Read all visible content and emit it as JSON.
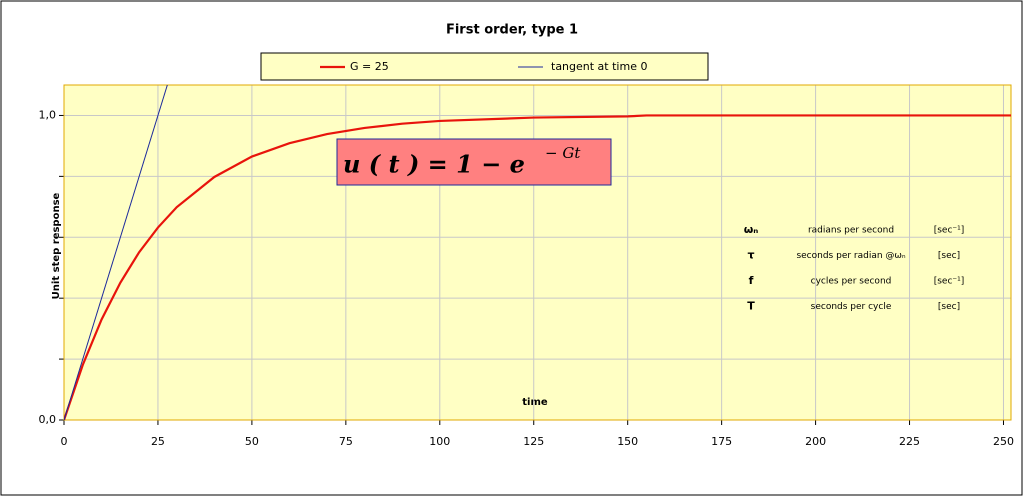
{
  "chart_data": {
    "type": "line",
    "title": "First order, type 1",
    "xlabel": "time",
    "ylabel": "Unit step response",
    "xlim": [
      0,
      252
    ],
    "ylim": [
      0,
      1.1
    ],
    "xticks": [
      0,
      25,
      50,
      75,
      100,
      125,
      150,
      175,
      200,
      225,
      250
    ],
    "yticks": [
      {
        "value": 0,
        "label": "0,0"
      },
      {
        "value": 0.2,
        "label": null
      },
      {
        "value": 0.4,
        "label": null
      },
      {
        "value": 0.6,
        "label": null
      },
      {
        "value": 0.8,
        "label": null
      },
      {
        "value": 1.0,
        "label": "1,0"
      }
    ],
    "grid": true,
    "legend": "top",
    "series": [
      {
        "name": "G =  25",
        "color": "#e8140c",
        "x": [
          0,
          5,
          10,
          15,
          20,
          25,
          30,
          40,
          50,
          60,
          70,
          80,
          90,
          100,
          125,
          150,
          155,
          175,
          200,
          225,
          252
        ],
        "values": [
          0,
          0.181,
          0.33,
          0.451,
          0.551,
          0.632,
          0.699,
          0.798,
          0.865,
          0.909,
          0.939,
          0.959,
          0.973,
          0.982,
          0.993,
          0.997,
          1.0,
          1.0,
          1.0,
          1.0,
          1.0
        ]
      },
      {
        "name": "tangent at time 0",
        "color": "#1c2a9c",
        "x": [
          0,
          27.5
        ],
        "values": [
          0,
          1.1
        ]
      }
    ],
    "annotations": {
      "formula": {
        "base": "u ( t )  =  1  −  e",
        "exponent": "− Gt"
      },
      "table": [
        [
          "ωₙ",
          "radians per second",
          "[sec⁻¹]"
        ],
        [
          "τ",
          "seconds per radian @ωₙ",
          "[sec]"
        ],
        [
          "f",
          "cycles per second",
          "[sec⁻¹]"
        ],
        [
          "T",
          "seconds per cycle",
          "[sec]"
        ]
      ]
    }
  }
}
